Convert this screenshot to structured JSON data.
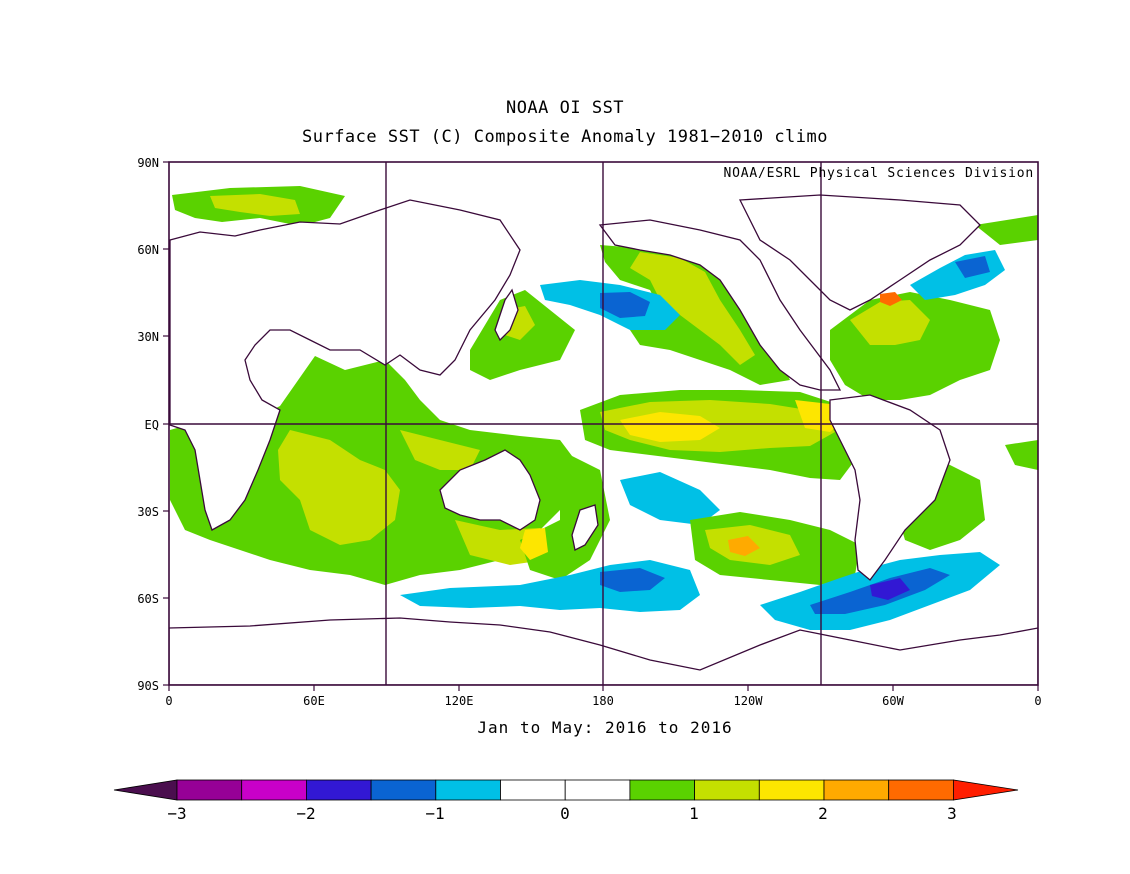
{
  "title": "NOAA OI SST",
  "subtitle": "Surface SST (C) Composite Anomaly 1981−2010 climo",
  "credit": "NOAA/ESRL Physical Sciences Division",
  "period": "Jan to May: 2016 to 2016",
  "x_ticks": [
    "0",
    "60E",
    "120E",
    "180",
    "120W",
    "60W",
    "0"
  ],
  "y_ticks": [
    "90N",
    "60N",
    "30N",
    "EQ",
    "30S",
    "60S",
    "90S"
  ],
  "colorbar": {
    "labels": [
      "−3",
      "−2",
      "−1",
      "0",
      "1",
      "2",
      "3"
    ],
    "colors": [
      "#4a0e4e",
      "#960096",
      "#c800c8",
      "#3218d4",
      "#0a64d2",
      "#00c0e6",
      "#ffffff",
      "#ffffff",
      "#5ad200",
      "#c4e000",
      "#fde600",
      "#ffaa00",
      "#ff6a00",
      "#ff1e00"
    ]
  },
  "anomaly_palette": {
    "cold3": "#3218d4",
    "cold2": "#0a64d2",
    "cold1": "#00c0e6",
    "warm1": "#5ad200",
    "warm15": "#c4e000",
    "warm2": "#fde600",
    "warm25": "#ffaa00",
    "warm3": "#ff6a00",
    "magenta": "#c800c8"
  },
  "land_outline_color": "#3a0a3a"
}
